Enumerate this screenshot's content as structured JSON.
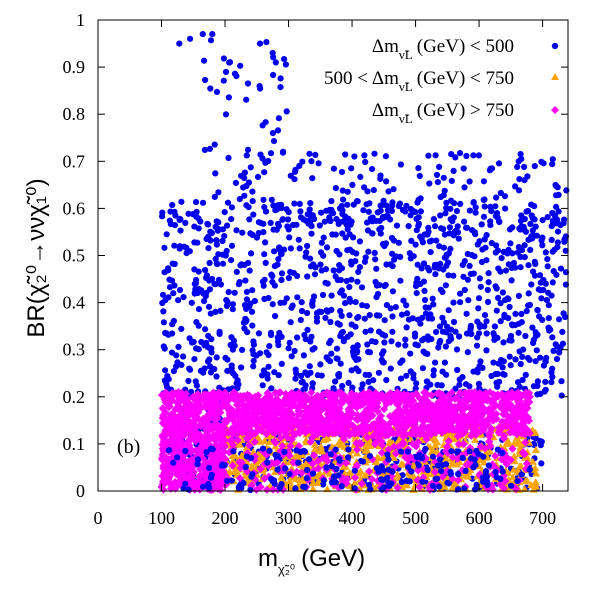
{
  "chart_data": {
    "type": "scatter",
    "panel_label": "(b)",
    "xlabel": {
      "main": "m",
      "sub": "χ̃₂⁰",
      "units": "(GeV)"
    },
    "ylabel": {
      "main": "BR(χ̃₂⁰→νν",
      "tail": "χ̃₁⁰)"
    },
    "xlim": [
      0,
      740
    ],
    "ylim": [
      0,
      1
    ],
    "x_ticks": [
      0,
      100,
      200,
      300,
      400,
      500,
      600,
      700
    ],
    "y_ticks": [
      0,
      0.1,
      0.2,
      0.3,
      0.4,
      0.5,
      0.6,
      0.7,
      0.8,
      0.9,
      1
    ],
    "grid": false,
    "legend_position": "top-right",
    "legend": [
      {
        "symbol": "Δm",
        "sub": "ν̃L",
        "text": "(GeV) < 500",
        "prefix": ""
      },
      {
        "symbol": "Δm",
        "sub": "ν̃L",
        "text": "(GeV) < 750",
        "prefix": "500 <"
      },
      {
        "symbol": "Δm",
        "sub": "ν̃L",
        "text": "(GeV) > 750",
        "prefix": ""
      }
    ],
    "series": [
      {
        "name": "Δm < 500",
        "color": "#0000ee",
        "marker": "circle",
        "regions": [
          {
            "x": [
              100,
              740
            ],
            "y": [
              0.2,
              0.62
            ],
            "n": 1100
          },
          {
            "x": [
              180,
              740
            ],
            "y": [
              0.55,
              0.72
            ],
            "n": 260
          },
          {
            "x": [
              160,
              300
            ],
            "y": [
              0.72,
              0.97
            ],
            "n": 70
          },
          {
            "x": [
              120,
              200
            ],
            "y": [
              0.0,
              0.22
            ],
            "n": 90
          },
          {
            "x": [
              200,
              700
            ],
            "y": [
              0.0,
              0.12
            ],
            "n": 220
          }
        ],
        "points": [
          [
            106,
            0.405
          ],
          [
            128,
            0.95
          ],
          [
            145,
            0.96
          ],
          [
            165,
            0.97
          ],
          [
            180,
            0.97
          ],
          [
            255,
            0.95
          ],
          [
            275,
            0.93
          ],
          [
            280,
            0.91
          ]
        ]
      },
      {
        "name": "500 < Δm < 750",
        "color": "#ffa500",
        "marker": "triangle",
        "regions": [
          {
            "x": [
              200,
              690
            ],
            "y": [
              0.0,
              0.14
            ],
            "n": 700
          }
        ],
        "points": []
      },
      {
        "name": "Δm > 750",
        "color": "#ff00ff",
        "marker": "diamond",
        "regions": [
          {
            "x": [
              100,
              680
            ],
            "y": [
              0.12,
              0.21
            ],
            "n": 1500
          },
          {
            "x": [
              100,
              200
            ],
            "y": [
              0.0,
              0.12
            ],
            "n": 380
          },
          {
            "x": [
              200,
              680
            ],
            "y": [
              0.0,
              0.12
            ],
            "n": 260
          }
        ],
        "points": []
      }
    ]
  }
}
